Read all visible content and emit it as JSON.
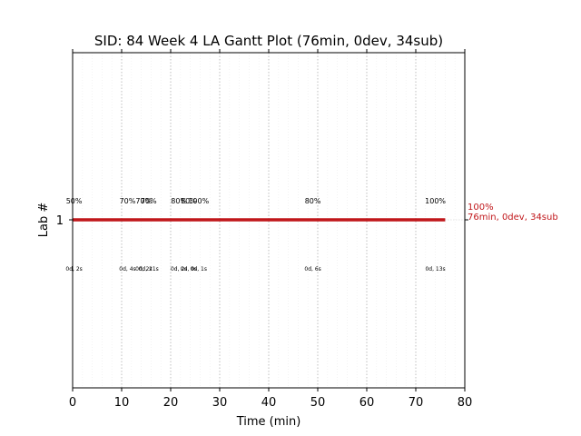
{
  "chart_data": {
    "type": "gantt",
    "title": "SID: 84 Week 4 LA Gantt Plot (76min, 0dev, 34sub)",
    "xlabel": "Time (min)",
    "ylabel": "Lab #",
    "xlim": [
      0,
      80
    ],
    "xticks": [
      0,
      10,
      20,
      30,
      40,
      50,
      60,
      70,
      80
    ],
    "categories": [
      "1"
    ],
    "grid": {
      "x_major": true,
      "x_minor": true,
      "y": false
    },
    "bar": {
      "lab": "1",
      "start": 0,
      "end": 76,
      "color": "#c0161a"
    },
    "events": [
      {
        "x": 0.3,
        "pct": "50%",
        "detail": "0d, 2s"
      },
      {
        "x": 11.2,
        "pct": "70%",
        "detail": "0d, 4s"
      },
      {
        "x": 15.5,
        "pct": "70%",
        "detail": "0d, 21s"
      },
      {
        "x": 14.5,
        "pct": "70%",
        "detail": "0d, 2s"
      },
      {
        "x": 21.7,
        "pct": "80%",
        "detail": "0d, 2s"
      },
      {
        "x": 23.7,
        "pct": "80%",
        "detail": "0d, 0s"
      },
      {
        "x": 25.7,
        "pct": "100%",
        "detail": "0d, 1s"
      },
      {
        "x": 49,
        "pct": "80%",
        "detail": "0d, 6s"
      },
      {
        "x": 74,
        "pct": "100%",
        "detail": "0d, 13s"
      }
    ],
    "end_annotation": {
      "line1": "100%",
      "line2": "76min, 0dev, 34sub",
      "color": "#c0161a"
    }
  }
}
